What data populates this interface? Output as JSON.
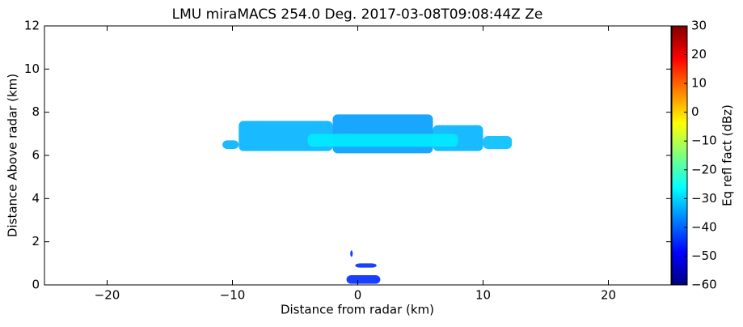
{
  "chart_data": {
    "type": "radar-rhi",
    "title": "LMU miraMACS 254.0 Deg. 2017-03-08T09:08:44Z  Ze",
    "xlabel": "Distance from radar (km)",
    "ylabel": "Distance Above radar  (km)",
    "colorbar_label": "Eq refl fact (dBz)",
    "colormap": "jet",
    "xlim": [
      -25,
      25
    ],
    "xticks": [
      {
        "value": -20,
        "label": "−20"
      },
      {
        "value": -10,
        "label": "−10"
      },
      0,
      10,
      20
    ],
    "ylim": [
      0,
      12
    ],
    "yticks": [
      0,
      2,
      4,
      6,
      8,
      10,
      12
    ],
    "clim": [
      -60,
      30
    ],
    "cticks": [
      {
        "value": -60,
        "label": "−60"
      },
      {
        "value": -50,
        "label": "−50"
      },
      {
        "value": -40,
        "label": "−40"
      },
      {
        "value": -30,
        "label": "−30"
      },
      {
        "value": -20,
        "label": "−20"
      },
      {
        "value": -10,
        "label": "−10"
      },
      0,
      10,
      20,
      30
    ],
    "cells": [
      {
        "x": [
          -10.8,
          -9.5
        ],
        "y": [
          6.3,
          6.7
        ],
        "value": -33
      },
      {
        "x": [
          -9.5,
          -2
        ],
        "y": [
          6.2,
          7.6
        ],
        "value": -33
      },
      {
        "x": [
          -2,
          6
        ],
        "y": [
          6.1,
          7.9
        ],
        "value": -35
      },
      {
        "x": [
          6,
          10
        ],
        "y": [
          6.2,
          7.4
        ],
        "value": -33
      },
      {
        "x": [
          10,
          12.3
        ],
        "y": [
          6.3,
          6.9
        ],
        "value": -32
      },
      {
        "x": [
          -4,
          8
        ],
        "y": [
          6.4,
          7.0
        ],
        "value": -28
      },
      {
        "x": [
          -0.2,
          1.5
        ],
        "y": [
          0.8,
          1.0
        ],
        "value": -45
      },
      {
        "x": [
          -0.9,
          1.8
        ],
        "y": [
          0.05,
          0.45
        ],
        "value": -45
      },
      {
        "x": [
          -0.6,
          -0.4
        ],
        "y": [
          1.3,
          1.6
        ],
        "value": -45
      }
    ]
  }
}
